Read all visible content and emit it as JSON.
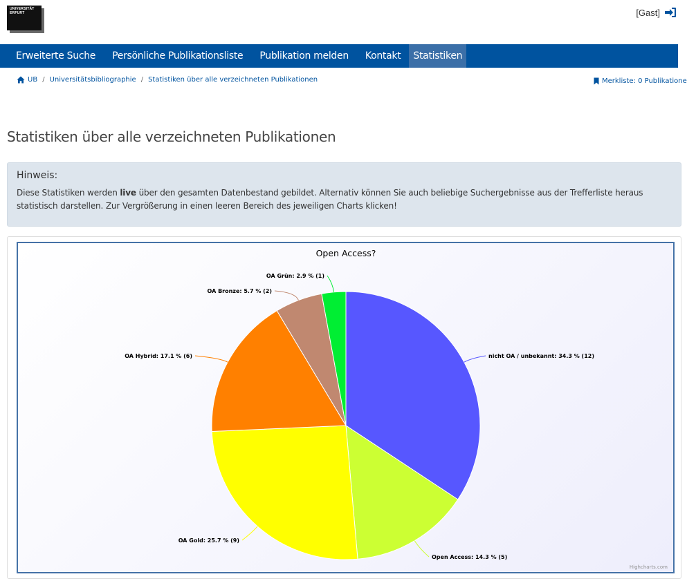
{
  "header": {
    "logo_line1": "UNIVERSITÄT",
    "logo_line2": "ERFURT",
    "user_label": "[Gast]"
  },
  "nav": {
    "items": [
      {
        "label": "Erweiterte Suche",
        "active": false
      },
      {
        "label": "Persönliche Publikationsliste",
        "active": false
      },
      {
        "label": "Publikation melden",
        "active": false
      },
      {
        "label": "Kontakt",
        "active": false
      },
      {
        "label": "Statistiken",
        "active": true
      }
    ]
  },
  "breadcrumb": {
    "items": [
      "UB",
      "Universitätsbibliographie",
      "Statistiken über alle verzeichneten Publikationen"
    ],
    "separator": "/"
  },
  "merkliste": {
    "label": "Merkliste: 0 Publikatione"
  },
  "page": {
    "title": "Statistiken über alle verzeichneten Publikationen"
  },
  "hint": {
    "title": "Hinweis:",
    "text_before": "Diese Statistiken werden ",
    "text_bold": "live",
    "text_after": " über den gesamten Datenbestand gebildet. Alternativ können Sie auch beliebige Suchergebnisse aus der Trefferliste heraus statistisch darstellen. Zur Vergrößerung in einen leeren Bereich des jeweiligen Charts klicken!"
  },
  "chart_data": {
    "type": "pie",
    "title": "Open Access?",
    "credits": "Highcharts.com",
    "slices": [
      {
        "name": "nicht OA / unbekannt",
        "percent": 34.3,
        "count": 12,
        "color": "#5757ff",
        "label": "nicht OA / unbekannt: 34.3 % (12)"
      },
      {
        "name": "Open Access",
        "percent": 14.3,
        "count": 5,
        "color": "#ccff33",
        "label": "Open Access: 14.3 % (5)"
      },
      {
        "name": "OA Gold",
        "percent": 25.7,
        "count": 9,
        "color": "#ffff00",
        "label": "OA Gold: 25.7 % (9)"
      },
      {
        "name": "OA Hybrid",
        "percent": 17.1,
        "count": 6,
        "color": "#ff8000",
        "label": "OA Hybrid: 17.1 % (6)"
      },
      {
        "name": "OA Bronze",
        "percent": 5.7,
        "count": 2,
        "color": "#c08870",
        "label": "OA Bronze: 5.7 % (2)"
      },
      {
        "name": "OA Grün",
        "percent": 2.9,
        "count": 1,
        "color": "#00ee33",
        "label": "OA Grün: 2.9 % (1)"
      }
    ]
  }
}
